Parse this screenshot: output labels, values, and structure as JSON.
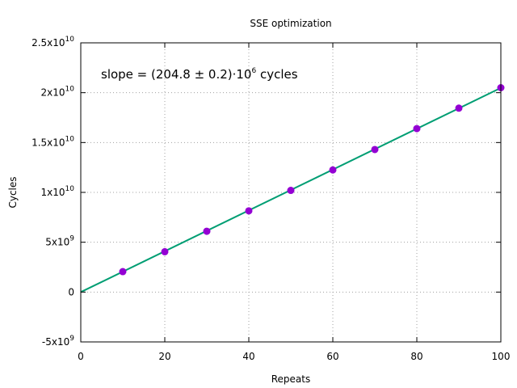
{
  "chart_data": {
    "type": "scatter",
    "title": "SSE optimization",
    "xlabel": "Repeats",
    "ylabel": "Cycles",
    "xlim": [
      0,
      100
    ],
    "ylim": [
      -5000000000.0,
      25000000000.0
    ],
    "x_ticks": [
      0,
      20,
      40,
      60,
      80,
      100
    ],
    "x_tick_labels": [
      "0",
      "20",
      "40",
      "60",
      "80",
      "100"
    ],
    "y_ticks": [
      {
        "value": 25000000000.0,
        "base": "2.5x10",
        "exp": "10"
      },
      {
        "value": 20000000000.0,
        "base": "2x10",
        "exp": "10"
      },
      {
        "value": 15000000000.0,
        "base": "1.5x10",
        "exp": "10"
      },
      {
        "value": 10000000000.0,
        "base": "1x10",
        "exp": "10"
      },
      {
        "value": 5000000000.0,
        "base": "5x10",
        "exp": "9"
      },
      {
        "value": 0,
        "base": "0",
        "exp": ""
      },
      {
        "value": -5000000000.0,
        "base": "-5x10",
        "exp": "9"
      }
    ],
    "grid": true,
    "series": [
      {
        "x": [
          10,
          20,
          30,
          40,
          50,
          60,
          70,
          80,
          90,
          100
        ],
        "y": [
          2050000000.0,
          4050000000.0,
          6100000000.0,
          8150000000.0,
          10200000000.0,
          12250000000.0,
          14300000000.0,
          16400000000.0,
          18450000000.0,
          20500000000.0
        ],
        "color": "#9400d3"
      }
    ],
    "fit_line": {
      "slope": 204800000.0,
      "intercept": 0,
      "color": "#009e73"
    },
    "annotation": {
      "text_main": "slope = (204.8 ± 0.2)·10",
      "text_exp": "6",
      "text_tail": " cycles"
    }
  }
}
